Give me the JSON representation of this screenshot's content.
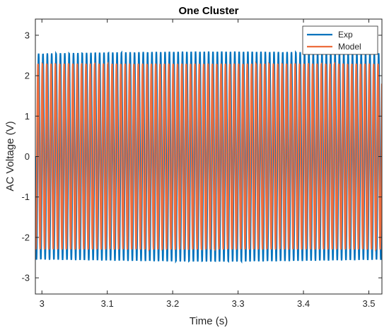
{
  "chart_data": {
    "type": "line",
    "title": "One Cluster",
    "xlabel": "Time (s)",
    "ylabel": "AC Voltage (V)",
    "xlim": [
      2.99,
      3.52
    ],
    "ylim": [
      -3.4,
      3.4
    ],
    "x_ticks": [
      "3",
      "3.1",
      "3.2",
      "3.3",
      "3.4",
      "3.5"
    ],
    "y_ticks": [
      "-3",
      "-2",
      "-1",
      "0",
      "1",
      "2",
      "3"
    ],
    "grid": false,
    "legend_position": "top-right",
    "series": [
      {
        "name": "Exp",
        "color": "#0072BD",
        "amplitude": 2.57,
        "frequency_hz": 150,
        "phase": 0.0,
        "description": "sinusoid, amplitude ~2.55-2.62 V"
      },
      {
        "name": "Model",
        "color": "#ED6D3D",
        "amplitude": 2.3,
        "frequency_hz": 150,
        "phase": 0.9,
        "description": "sinusoid, amplitude ~2.3 V"
      }
    ]
  }
}
